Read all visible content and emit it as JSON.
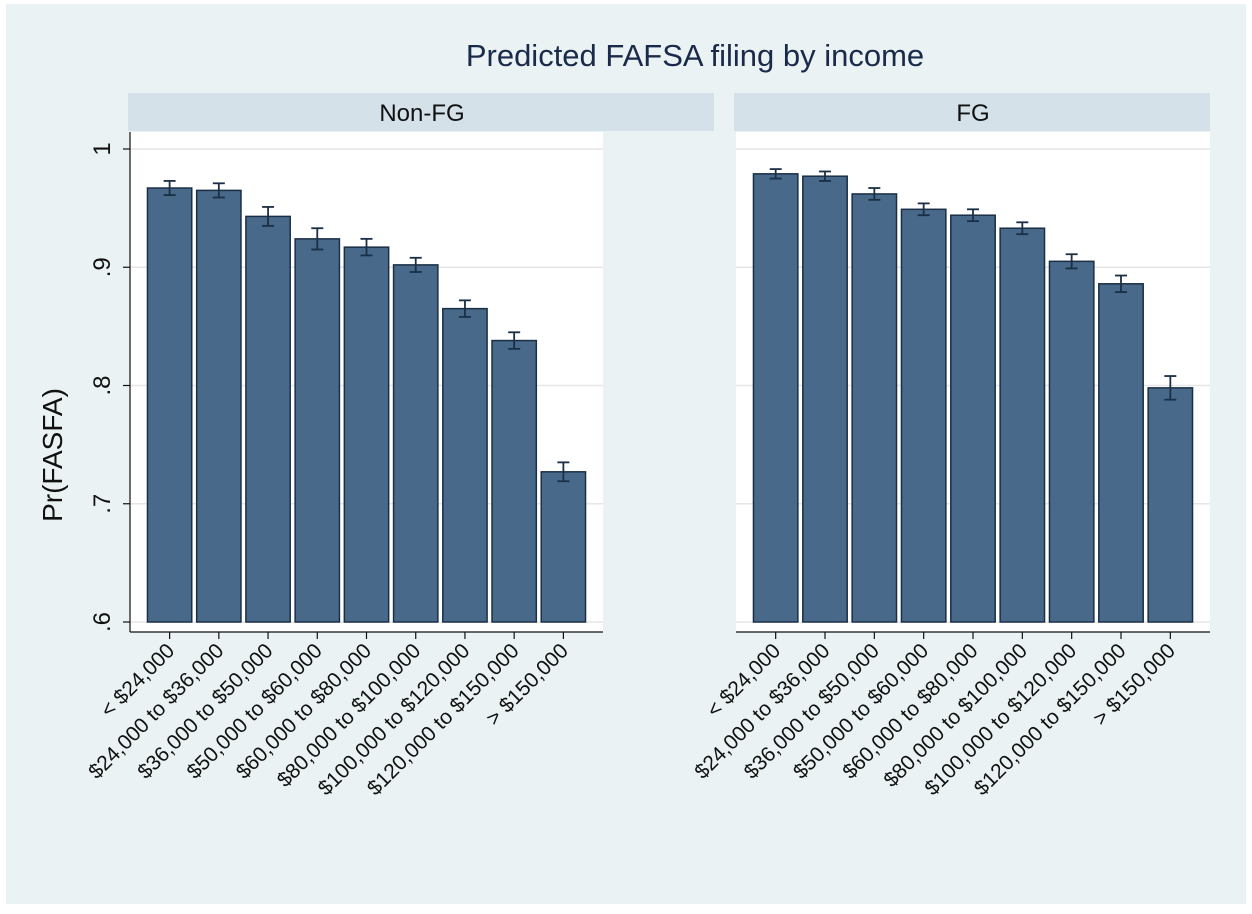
{
  "chart_data": {
    "type": "bar",
    "title": "Predicted FAFSA filing by income",
    "y_label": "Pr(FASFA)",
    "categories": [
      "< $24,000",
      "$24,000 to $36,000",
      "$36,000 to $50,000",
      "$50,000 to $60,000",
      "$60,000 to $80,000",
      "$80,000 to $100,000",
      "$100,000 to $120,000",
      "$120,000 to $150,000",
      "> $150,000"
    ],
    "panels": [
      {
        "name": "Non-FG",
        "values": [
          0.967,
          0.965,
          0.943,
          0.924,
          0.917,
          0.902,
          0.865,
          0.838,
          0.727
        ],
        "errors": [
          0.006,
          0.006,
          0.008,
          0.009,
          0.007,
          0.006,
          0.007,
          0.007,
          0.008
        ]
      },
      {
        "name": "FG",
        "values": [
          0.979,
          0.977,
          0.962,
          0.949,
          0.944,
          0.933,
          0.905,
          0.886,
          0.798
        ],
        "errors": [
          0.004,
          0.004,
          0.005,
          0.005,
          0.005,
          0.005,
          0.006,
          0.007,
          0.01
        ]
      }
    ],
    "color": "#49698a",
    "edge_color": "#1a2f45",
    "ylim": [
      0.6,
      1
    ],
    "yticks": [
      {
        "value": 0.6,
        "label": ".6"
      },
      {
        "value": 0.7,
        "label": ".7"
      },
      {
        "value": 0.8,
        "label": ".8"
      },
      {
        "value": 0.9,
        "label": ".9"
      },
      1
    ],
    "grid": true
  }
}
